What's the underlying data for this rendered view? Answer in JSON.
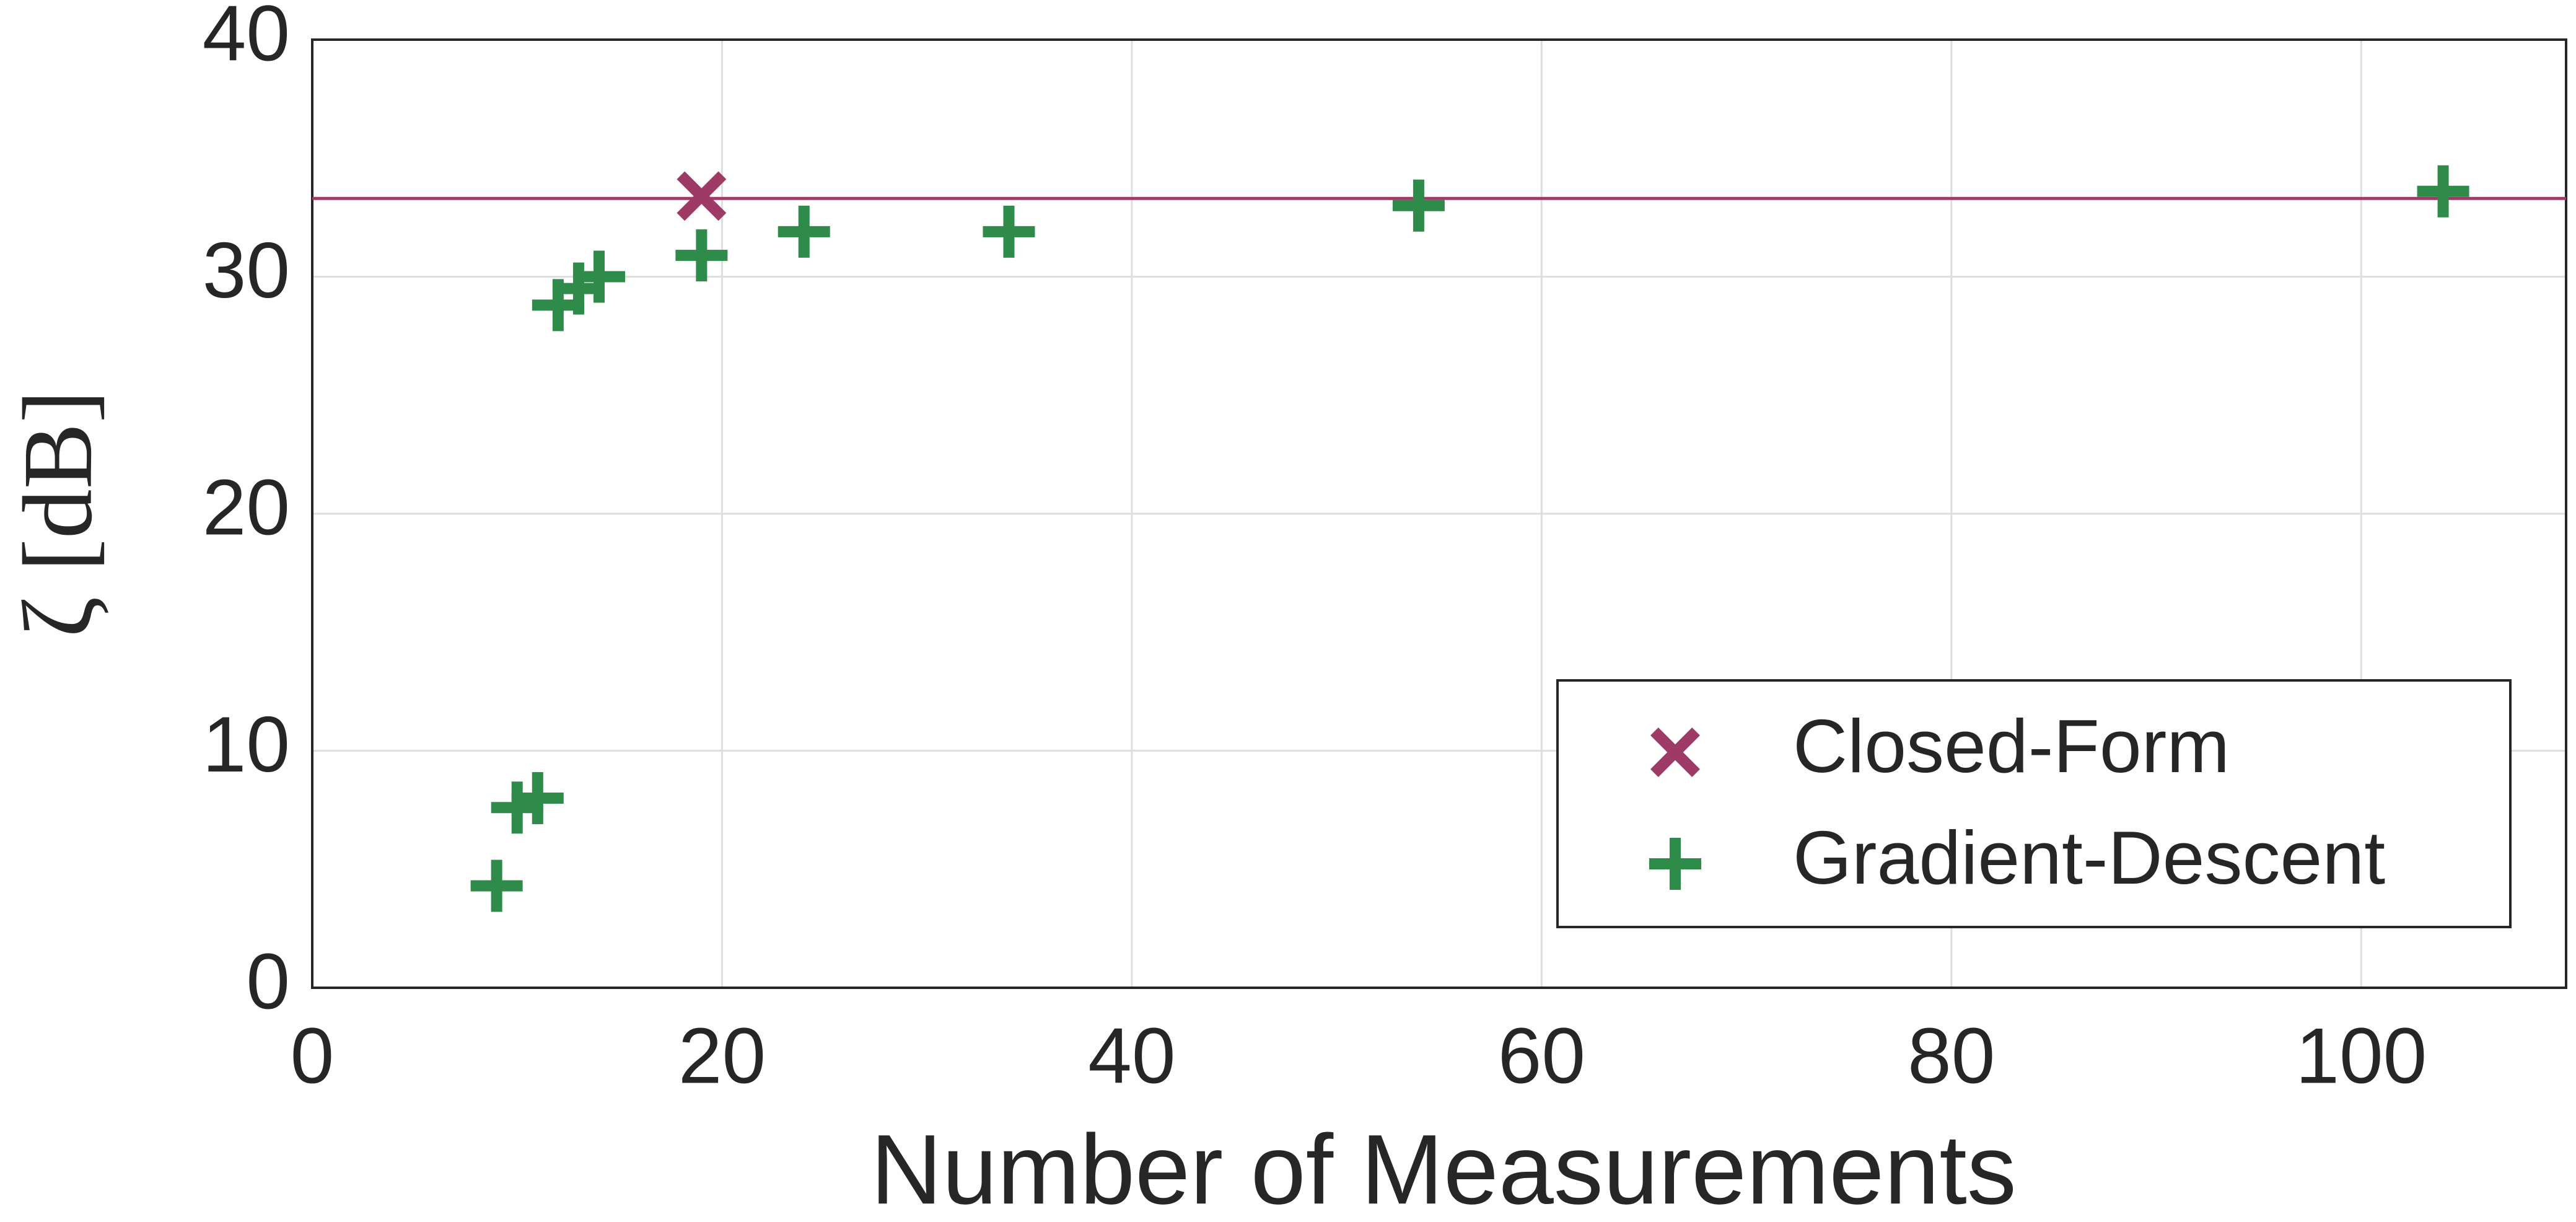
{
  "chart_data": {
    "type": "scatter",
    "xlabel": "Number of Measurements",
    "ylabel": "ζ [dB]",
    "xlim": [
      0,
      110
    ],
    "xticks": [
      0,
      20,
      40,
      60,
      80,
      100
    ],
    "ylim": [
      0,
      40
    ],
    "yticks": [
      0,
      10,
      20,
      30,
      40
    ],
    "grid": true,
    "legend": "lower right",
    "hline": {
      "value": 33.3,
      "color": "#9e3a66"
    },
    "series": [
      {
        "name": "Closed-Form",
        "color": "#9e3a66",
        "marker": "x",
        "x": [
          19
        ],
        "values": [
          33.4
        ]
      },
      {
        "name": "Gradient-Descent",
        "color": "#2e8b4a",
        "marker": "+",
        "x": [
          9,
          10,
          11,
          12,
          13,
          14,
          19,
          24,
          34,
          54,
          104
        ],
        "values": [
          4.3,
          7.6,
          8.0,
          28.8,
          29.5,
          30.0,
          30.9,
          31.9,
          31.9,
          33.0,
          33.6
        ]
      }
    ]
  }
}
